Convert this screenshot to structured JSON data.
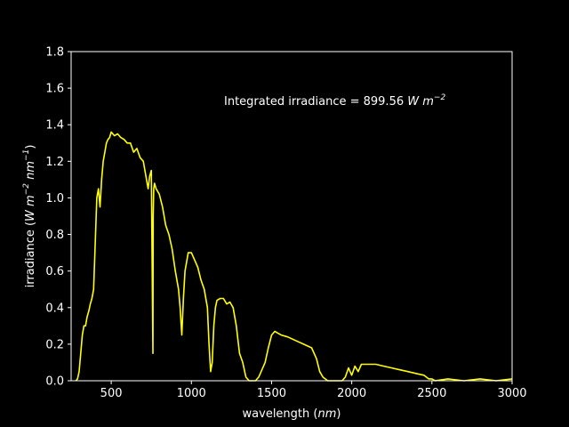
{
  "chart_data": {
    "type": "line",
    "title": "",
    "xlabel_main": "wavelength (",
    "xlabel_unit": "nm",
    "xlabel_close": ")",
    "ylabel_main": "irradiance (",
    "ylabel_unit_a": "W m",
    "ylabel_exp_a": "−2",
    "ylabel_unit_b": " nm",
    "ylabel_exp_b": "−1",
    "ylabel_close": ")",
    "annotation_main": "Integrated irradiance = 899.56 ",
    "annotation_unit": "W m",
    "annotation_exp": "−2",
    "xlim": [
      250,
      3000
    ],
    "ylim": [
      0,
      1.8
    ],
    "xticks": [
      500,
      1000,
      1500,
      2000,
      2500,
      3000
    ],
    "xtick_labels": [
      "500",
      "1000",
      "1500",
      "2000",
      "2500",
      "3000"
    ],
    "yticks": [
      0,
      0.2,
      0.4,
      0.6,
      0.8,
      1.0,
      1.2,
      1.4,
      1.6,
      1.8
    ],
    "ytick_labels": [
      "0.0",
      "0.2",
      "0.4",
      "0.6",
      "0.8",
      "1.0",
      "1.2",
      "1.4",
      "1.6",
      "1.8"
    ],
    "grid": false,
    "legend": "none",
    "colors": {
      "background": "#000000",
      "axes": "#ffffff",
      "line": "#ffff00",
      "text": "#ffffff"
    },
    "series": [
      {
        "x": [
          280,
          290,
          300,
          310,
          320,
          330,
          340,
          350,
          360,
          370,
          380,
          390,
          400,
          410,
          420,
          430,
          440,
          450,
          460,
          470,
          480,
          490,
          500,
          520,
          540,
          560,
          580,
          600,
          620,
          640,
          660,
          680,
          700,
          710,
          720,
          730,
          740,
          750,
          760,
          762,
          765,
          770,
          780,
          800,
          820,
          830,
          840,
          860,
          880,
          900,
          920,
          930,
          940,
          950,
          960,
          980,
          1000,
          1020,
          1040,
          1060,
          1080,
          1100,
          1110,
          1120,
          1130,
          1140,
          1150,
          1160,
          1180,
          1200,
          1220,
          1240,
          1260,
          1280,
          1300,
          1320,
          1340,
          1360,
          1380,
          1400,
          1420,
          1440,
          1460,
          1480,
          1500,
          1520,
          1540,
          1560,
          1600,
          1650,
          1700,
          1750,
          1780,
          1800,
          1820,
          1850,
          1900,
          1940,
          1960,
          1980,
          2000,
          2020,
          2040,
          2060,
          2080,
          2100,
          2150,
          2200,
          2250,
          2300,
          2350,
          2400,
          2450,
          2480,
          2500,
          2520,
          2600,
          2700,
          2800,
          2900,
          3000
        ],
        "y": [
          0.0,
          0.01,
          0.05,
          0.15,
          0.25,
          0.3,
          0.3,
          0.35,
          0.38,
          0.42,
          0.45,
          0.5,
          0.75,
          1.0,
          1.05,
          0.95,
          1.1,
          1.2,
          1.25,
          1.3,
          1.32,
          1.33,
          1.36,
          1.34,
          1.35,
          1.33,
          1.32,
          1.3,
          1.3,
          1.25,
          1.27,
          1.22,
          1.2,
          1.15,
          1.1,
          1.05,
          1.12,
          1.15,
          0.15,
          0.9,
          1.05,
          1.08,
          1.05,
          1.02,
          0.95,
          0.9,
          0.85,
          0.8,
          0.72,
          0.6,
          0.5,
          0.4,
          0.25,
          0.45,
          0.6,
          0.7,
          0.7,
          0.66,
          0.62,
          0.55,
          0.5,
          0.4,
          0.2,
          0.05,
          0.1,
          0.3,
          0.4,
          0.44,
          0.45,
          0.45,
          0.42,
          0.43,
          0.4,
          0.3,
          0.15,
          0.1,
          0.02,
          0.0,
          0.0,
          0.0,
          0.02,
          0.06,
          0.1,
          0.18,
          0.25,
          0.27,
          0.26,
          0.25,
          0.24,
          0.22,
          0.2,
          0.18,
          0.12,
          0.05,
          0.02,
          0.0,
          0.0,
          0.0,
          0.02,
          0.07,
          0.03,
          0.08,
          0.05,
          0.09,
          0.09,
          0.09,
          0.09,
          0.08,
          0.07,
          0.06,
          0.05,
          0.04,
          0.03,
          0.01,
          0.01,
          0.0,
          0.01,
          0.0,
          0.01,
          0.0,
          0.01
        ]
      }
    ]
  }
}
